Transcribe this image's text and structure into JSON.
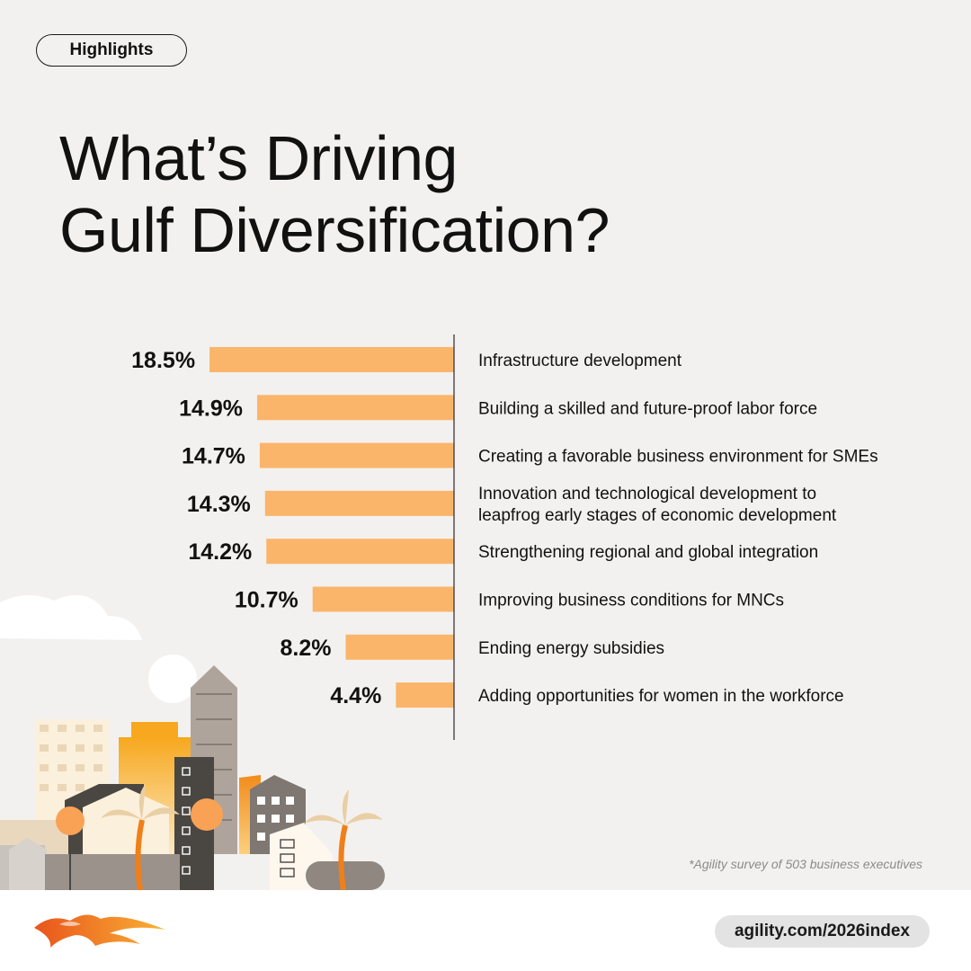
{
  "header": {
    "tag_label": "Highlights",
    "title_line1": "What’s Driving",
    "title_line2": "Gulf Diversification?"
  },
  "chart_data": {
    "type": "bar",
    "orientation": "horizontal",
    "categories": [
      [
        "Infrastructure development"
      ],
      [
        "Building a skilled and future-proof labor force"
      ],
      [
        "Creating a favorable business environment for SMEs"
      ],
      [
        "Innovation and technological development to",
        "leapfrog early stages of economic development"
      ],
      [
        "Strengthening regional and global integration"
      ],
      [
        "Improving business conditions for MNCs"
      ],
      [
        "Ending energy subsidies"
      ],
      [
        "Adding opportunities for women in the workforce"
      ]
    ],
    "values": [
      18.5,
      14.9,
      14.7,
      14.3,
      14.2,
      10.7,
      8.2,
      4.4
    ],
    "value_labels": [
      "18.5%",
      "14.9%",
      "14.7%",
      "14.3%",
      "14.2%",
      "10.7%",
      "8.2%",
      "4.4%"
    ],
    "grid": false,
    "legend": "none"
  },
  "footnote": "*Agility survey of 503 business executives",
  "footer": {
    "url": "agility.com/2026index"
  },
  "colors": {
    "background": "#f3f1ef",
    "bar": "#fbb56a",
    "text": "#111111",
    "footnote": "#8a8a8a"
  }
}
